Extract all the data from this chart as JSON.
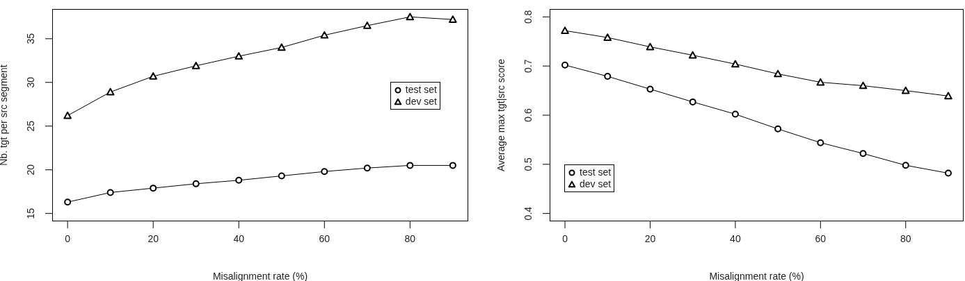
{
  "chart_data": [
    {
      "type": "line",
      "xlabel": "Misalignment rate (%)",
      "ylabel": "Nb. tgt per src segment",
      "x": [
        0,
        10,
        20,
        30,
        40,
        50,
        60,
        70,
        80,
        90
      ],
      "xlim": [
        -3.6,
        93.6
      ],
      "ylim": [
        14.1,
        38.4
      ],
      "xticks": [
        0,
        20,
        40,
        60,
        80
      ],
      "yticks": [
        15,
        20,
        25,
        30,
        35
      ],
      "legend": "right",
      "series": [
        {
          "name": "test set",
          "color": "#000000",
          "marker": "circle",
          "values": [
            16.3,
            17.4,
            17.9,
            18.4,
            18.8,
            19.3,
            19.8,
            20.2,
            20.5,
            20.5
          ]
        },
        {
          "name": "dev set",
          "color": "#000000",
          "marker": "triangle",
          "values": [
            26.2,
            28.9,
            30.7,
            31.9,
            33.0,
            34.0,
            35.4,
            36.5,
            37.5,
            37.2
          ]
        }
      ]
    },
    {
      "type": "line",
      "xlabel": "Misalignment rate (%)",
      "ylabel": "Average max tgt|src score",
      "x": [
        0,
        10,
        20,
        30,
        40,
        50,
        60,
        70,
        80,
        90
      ],
      "xlim": [
        -3.6,
        93.6
      ],
      "ylim": [
        0.384,
        0.816
      ],
      "xticks": [
        0,
        20,
        40,
        60,
        80
      ],
      "yticks": [
        0.4,
        0.5,
        0.6,
        0.7,
        0.8
      ],
      "legend": "bottom left",
      "series": [
        {
          "name": "test set",
          "color": "#000000",
          "marker": "circle",
          "values": [
            0.702,
            0.679,
            0.653,
            0.627,
            0.602,
            0.572,
            0.544,
            0.522,
            0.498,
            0.482
          ]
        },
        {
          "name": "dev set",
          "color": "#000000",
          "marker": "triangle",
          "values": [
            0.772,
            0.758,
            0.739,
            0.722,
            0.704,
            0.684,
            0.667,
            0.66,
            0.65,
            0.639
          ]
        }
      ]
    }
  ]
}
